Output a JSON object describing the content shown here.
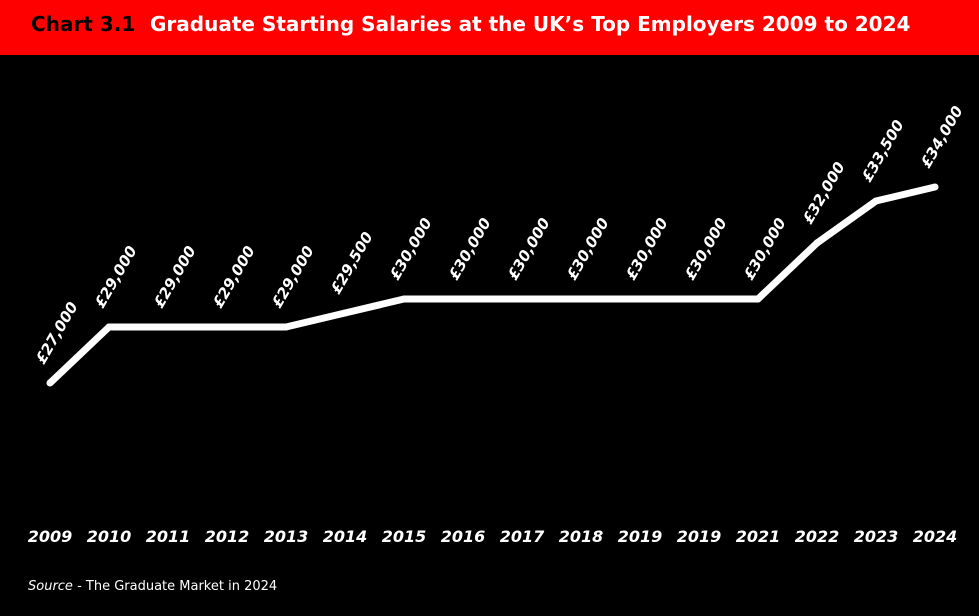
{
  "header": {
    "chart_number": "Chart 3.1",
    "title": "Graduate Starting Salaries at the UK’s Top Employers 2009 to 2024",
    "background_color": "#ff0000"
  },
  "chart_data": {
    "type": "line",
    "title": "Graduate Starting Salaries at the UK’s Top Employers 2009 to 2024",
    "xlabel": "",
    "ylabel": "",
    "categories": [
      "2009",
      "2010",
      "2011",
      "2012",
      "2013",
      "2014",
      "2015",
      "2016",
      "2017",
      "2018",
      "2019",
      "2019",
      "2021",
      "2022",
      "2023",
      "2024"
    ],
    "values": [
      27000,
      29000,
      29000,
      29000,
      29000,
      29500,
      30000,
      30000,
      30000,
      30000,
      30000,
      30000,
      30000,
      32000,
      33500,
      34000
    ],
    "data_labels": [
      "£27,000",
      "£29,000",
      "£29,000",
      "£29,000",
      "£29,000",
      "£29,500",
      "£30,000",
      "£30,000",
      "£30,000",
      "£30,000",
      "£30,000",
      "£30,000",
      "£30,000",
      "£32,000",
      "£33,500",
      "£34,000"
    ],
    "grid": false,
    "legend": "none",
    "line_color": "#ffffff",
    "background_color": "#000000"
  },
  "source": {
    "label": "Source",
    "text": " - The Graduate Market in 2024"
  }
}
